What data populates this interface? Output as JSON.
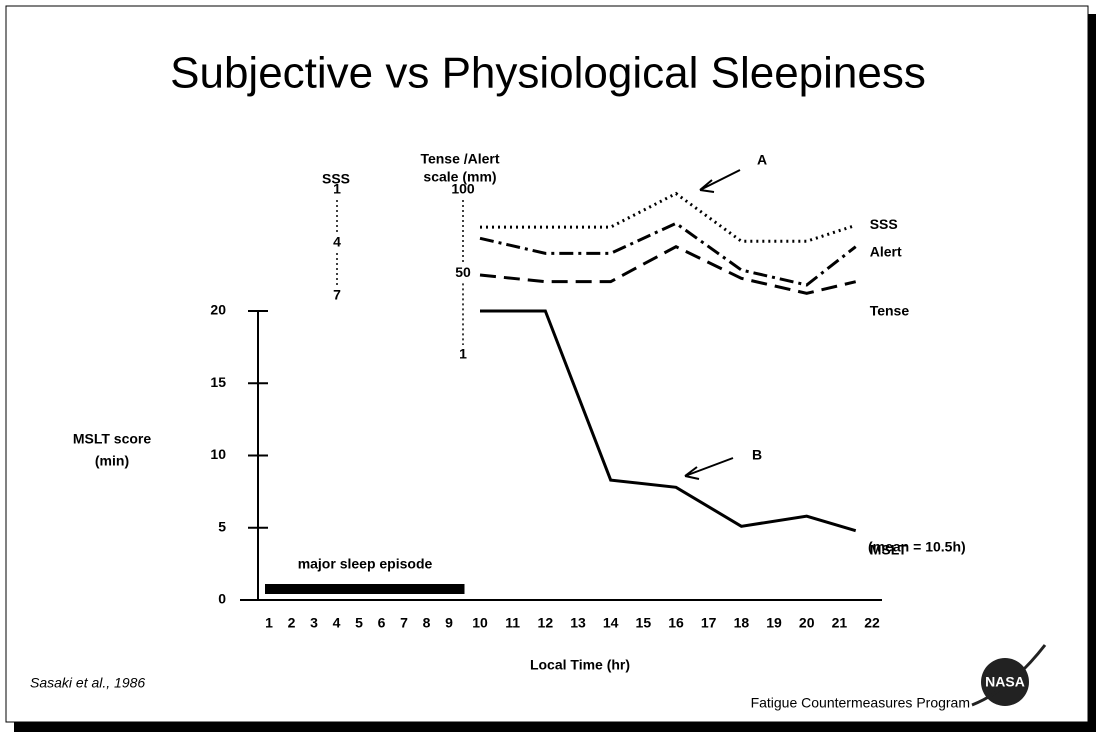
{
  "chart_data": {
    "type": "line",
    "title": "Subjective vs Physiological Sleepiness",
    "xlabel": "Local Time (hr)",
    "xticks": [
      1,
      2,
      3,
      4,
      5,
      6,
      7,
      8,
      9,
      10,
      11,
      12,
      13,
      14,
      15,
      16,
      17,
      18,
      19,
      20,
      21,
      22
    ],
    "ylabel": [
      "MSLT score",
      "(min)"
    ],
    "ylim": [
      0,
      20
    ],
    "yticks": [
      0,
      5,
      10,
      15,
      20
    ],
    "y2label": [
      "Tense /Alert",
      "scale (mm)"
    ],
    "y2lim": [
      1,
      100
    ],
    "y2ticks": [
      1,
      50,
      100
    ],
    "y3label": "SSS",
    "y3lim": [
      7,
      1
    ],
    "y3ticks": [
      1,
      4,
      7
    ],
    "series": [
      {
        "name": "SSS",
        "color": "#000000",
        "dash": "dotted",
        "axis": "y3",
        "x": [
          10,
          14,
          16,
          18,
          20,
          21.5
        ],
        "values": [
          3.1,
          3.1,
          1.2,
          3.9,
          3.9,
          3.0
        ]
      },
      {
        "name": "Alert",
        "color": "#000000",
        "dash": "dashdot",
        "axis": "y2",
        "x": [
          10,
          12,
          14,
          16,
          18,
          20,
          21.5
        ],
        "values": [
          71,
          62,
          62,
          80,
          52,
          43,
          66
        ]
      },
      {
        "name": "Tense",
        "color": "#000000",
        "dash": "dashed",
        "axis": "y2",
        "x": [
          10,
          12,
          14,
          16,
          18,
          20,
          21.5
        ],
        "values": [
          49,
          45,
          45,
          66,
          47,
          38,
          45
        ]
      },
      {
        "name": "MSLT",
        "color": "#000000",
        "dash": "solid",
        "axis": "y",
        "x": [
          10,
          12,
          14,
          16,
          18,
          20,
          21.5
        ],
        "values": [
          20,
          20,
          8.3,
          7.8,
          5.1,
          5.8,
          4.8
        ]
      }
    ],
    "mean_note": "(mean = 10.5h)",
    "sleep_episode": {
      "label": "major sleep episode",
      "start": 1,
      "end": 9.5,
      "color": "#000000"
    },
    "annotations": [
      "A",
      "B"
    ],
    "source": "Sasaki et al., 1986",
    "footer": "Fatigue Countermeasures Program",
    "logo": "NASA"
  }
}
